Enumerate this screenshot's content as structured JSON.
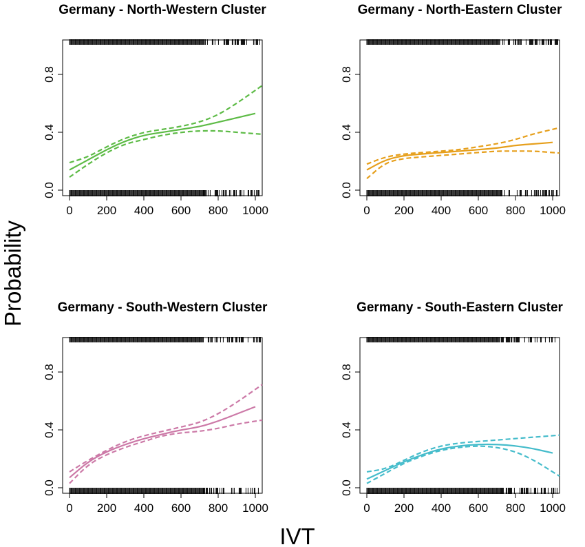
{
  "figure": {
    "ylabel": "Probability",
    "xlabel": "IVT"
  },
  "chart_data": [
    {
      "type": "line",
      "title": "Germany - North-Western Cluster",
      "color": "#5dbb46",
      "xlim": [
        0,
        1000
      ],
      "ylim": [
        0,
        1
      ],
      "xticks": [
        0,
        200,
        400,
        600,
        800,
        1000
      ],
      "yticks": [
        0.0,
        0.4,
        0.8
      ],
      "ytick_labels": [
        "0.0",
        "0.4",
        "0.8"
      ],
      "x": [
        0,
        100,
        200,
        300,
        400,
        500,
        600,
        700,
        800,
        900,
        1000
      ],
      "series": [
        {
          "role": "fit",
          "style": "solid",
          "values": [
            0.14,
            0.21,
            0.28,
            0.34,
            0.38,
            0.4,
            0.42,
            0.44,
            0.47,
            0.5,
            0.53
          ]
        },
        {
          "role": "upper",
          "style": "dashed",
          "values": [
            0.19,
            0.23,
            0.3,
            0.36,
            0.4,
            0.42,
            0.44,
            0.47,
            0.52,
            0.6,
            0.69
          ]
        },
        {
          "role": "lower",
          "style": "dashed",
          "values": [
            0.09,
            0.18,
            0.26,
            0.32,
            0.35,
            0.38,
            0.4,
            0.41,
            0.41,
            0.4,
            0.39
          ]
        }
      ]
    },
    {
      "type": "line",
      "title": "Germany - North-Eastern Cluster",
      "color": "#e69f1b",
      "xlim": [
        0,
        1000
      ],
      "ylim": [
        0,
        1
      ],
      "xticks": [
        0,
        200,
        400,
        600,
        800,
        1000
      ],
      "yticks": [
        0.0,
        0.4,
        0.8
      ],
      "ytick_labels": [
        "0.0",
        "0.4",
        "0.8"
      ],
      "x": [
        0,
        100,
        200,
        300,
        400,
        500,
        600,
        700,
        800,
        900,
        1000
      ],
      "series": [
        {
          "role": "fit",
          "style": "solid",
          "values": [
            0.14,
            0.21,
            0.24,
            0.25,
            0.26,
            0.27,
            0.28,
            0.29,
            0.31,
            0.32,
            0.33
          ]
        },
        {
          "role": "upper",
          "style": "dashed",
          "values": [
            0.18,
            0.23,
            0.25,
            0.26,
            0.27,
            0.28,
            0.3,
            0.32,
            0.35,
            0.39,
            0.42
          ]
        },
        {
          "role": "lower",
          "style": "dashed",
          "values": [
            0.08,
            0.19,
            0.22,
            0.23,
            0.24,
            0.25,
            0.26,
            0.27,
            0.27,
            0.27,
            0.26
          ]
        }
      ]
    },
    {
      "type": "line",
      "title": "Germany - South-Western Cluster",
      "color": "#cc79a7",
      "xlim": [
        0,
        1000
      ],
      "ylim": [
        0,
        1
      ],
      "xticks": [
        0,
        200,
        400,
        600,
        800,
        1000
      ],
      "yticks": [
        0.0,
        0.4,
        0.8
      ],
      "ytick_labels": [
        "0.0",
        "0.4",
        "0.8"
      ],
      "x": [
        0,
        100,
        200,
        300,
        400,
        500,
        600,
        700,
        800,
        900,
        1000
      ],
      "series": [
        {
          "role": "fit",
          "style": "solid",
          "values": [
            0.07,
            0.18,
            0.25,
            0.3,
            0.34,
            0.37,
            0.4,
            0.42,
            0.46,
            0.51,
            0.56
          ]
        },
        {
          "role": "upper",
          "style": "dashed",
          "values": [
            0.11,
            0.19,
            0.26,
            0.32,
            0.36,
            0.39,
            0.42,
            0.45,
            0.51,
            0.59,
            0.68
          ]
        },
        {
          "role": "lower",
          "style": "dashed",
          "values": [
            0.03,
            0.16,
            0.23,
            0.28,
            0.32,
            0.36,
            0.38,
            0.39,
            0.41,
            0.44,
            0.46
          ]
        }
      ]
    },
    {
      "type": "line",
      "title": "Germany - South-Eastern Cluster",
      "color": "#45bccb",
      "xlim": [
        0,
        1000
      ],
      "ylim": [
        0,
        1
      ],
      "xticks": [
        0,
        200,
        400,
        600,
        800,
        1000
      ],
      "yticks": [
        0.0,
        0.4,
        0.8
      ],
      "ytick_labels": [
        "0.0",
        "0.4",
        "0.8"
      ],
      "x": [
        0,
        100,
        200,
        300,
        400,
        500,
        600,
        700,
        800,
        900,
        1000
      ],
      "series": [
        {
          "role": "fit",
          "style": "solid",
          "values": [
            0.06,
            0.12,
            0.18,
            0.23,
            0.27,
            0.29,
            0.3,
            0.3,
            0.29,
            0.27,
            0.24
          ]
        },
        {
          "role": "upper",
          "style": "dashed",
          "values": [
            0.11,
            0.13,
            0.19,
            0.25,
            0.29,
            0.31,
            0.32,
            0.33,
            0.34,
            0.35,
            0.36
          ]
        },
        {
          "role": "lower",
          "style": "dashed",
          "values": [
            0.03,
            0.1,
            0.17,
            0.22,
            0.26,
            0.28,
            0.29,
            0.28,
            0.25,
            0.19,
            0.11
          ]
        }
      ]
    }
  ]
}
